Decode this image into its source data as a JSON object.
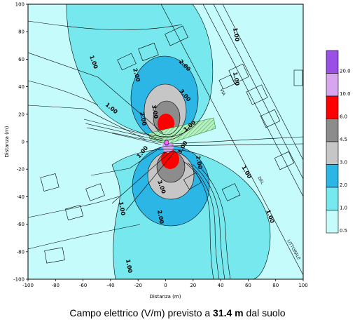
{
  "map": {
    "x_axis_title": "Distanza (m)",
    "y_axis_title": "Distanza (m)",
    "x_ticks": [
      "-100",
      "-80",
      "-60",
      "-40",
      "-20",
      "0",
      "20",
      "40",
      "60",
      "80",
      "100"
    ],
    "y_ticks": [
      "100",
      "80",
      "60",
      "40",
      "20",
      "0",
      "-20",
      "-40",
      "-60",
      "-80",
      "-100"
    ],
    "contour_labels": [
      "1.00",
      "1.00",
      "1.00",
      "1.00",
      "1.00",
      "1.00",
      "1.00",
      "1.00",
      "1.00",
      "1.00",
      "2.00",
      "2.00",
      "2.00",
      "2.00",
      "2.00",
      "3.00",
      "3.00",
      "3.00",
      "3.00"
    ],
    "street_labels": [
      "VIA",
      "DEL",
      "LITTORALE"
    ],
    "colors": {
      "background": "#c6fbfb",
      "level_1": "#77e8ee",
      "level_2": "#2bb6e6",
      "level_3": "#c6c6c6",
      "level_4": "#8c8c8c",
      "level_6": "#ff0000",
      "level_10": "#d8a6ee",
      "level_20": "#9a4fe6"
    }
  },
  "legend": {
    "entries": [
      {
        "label": "20.0",
        "color": "#9a4fe6"
      },
      {
        "label": "10.0",
        "color": "#d8a6ee"
      },
      {
        "label": "6.0",
        "color": "#ff0000"
      },
      {
        "label": "4.5",
        "color": "#8c8c8c"
      },
      {
        "label": "3.0",
        "color": "#c6c6c6"
      },
      {
        "label": "2.0",
        "color": "#2bb6e6"
      },
      {
        "label": "1.0",
        "color": "#77e8ee"
      },
      {
        "label": "0.5",
        "color": "#c6fbfb"
      }
    ]
  },
  "caption": {
    "prefix": "Campo elettrico (V/m) previsto a ",
    "height": "31.4 m",
    "suffix": " dal suolo"
  }
}
